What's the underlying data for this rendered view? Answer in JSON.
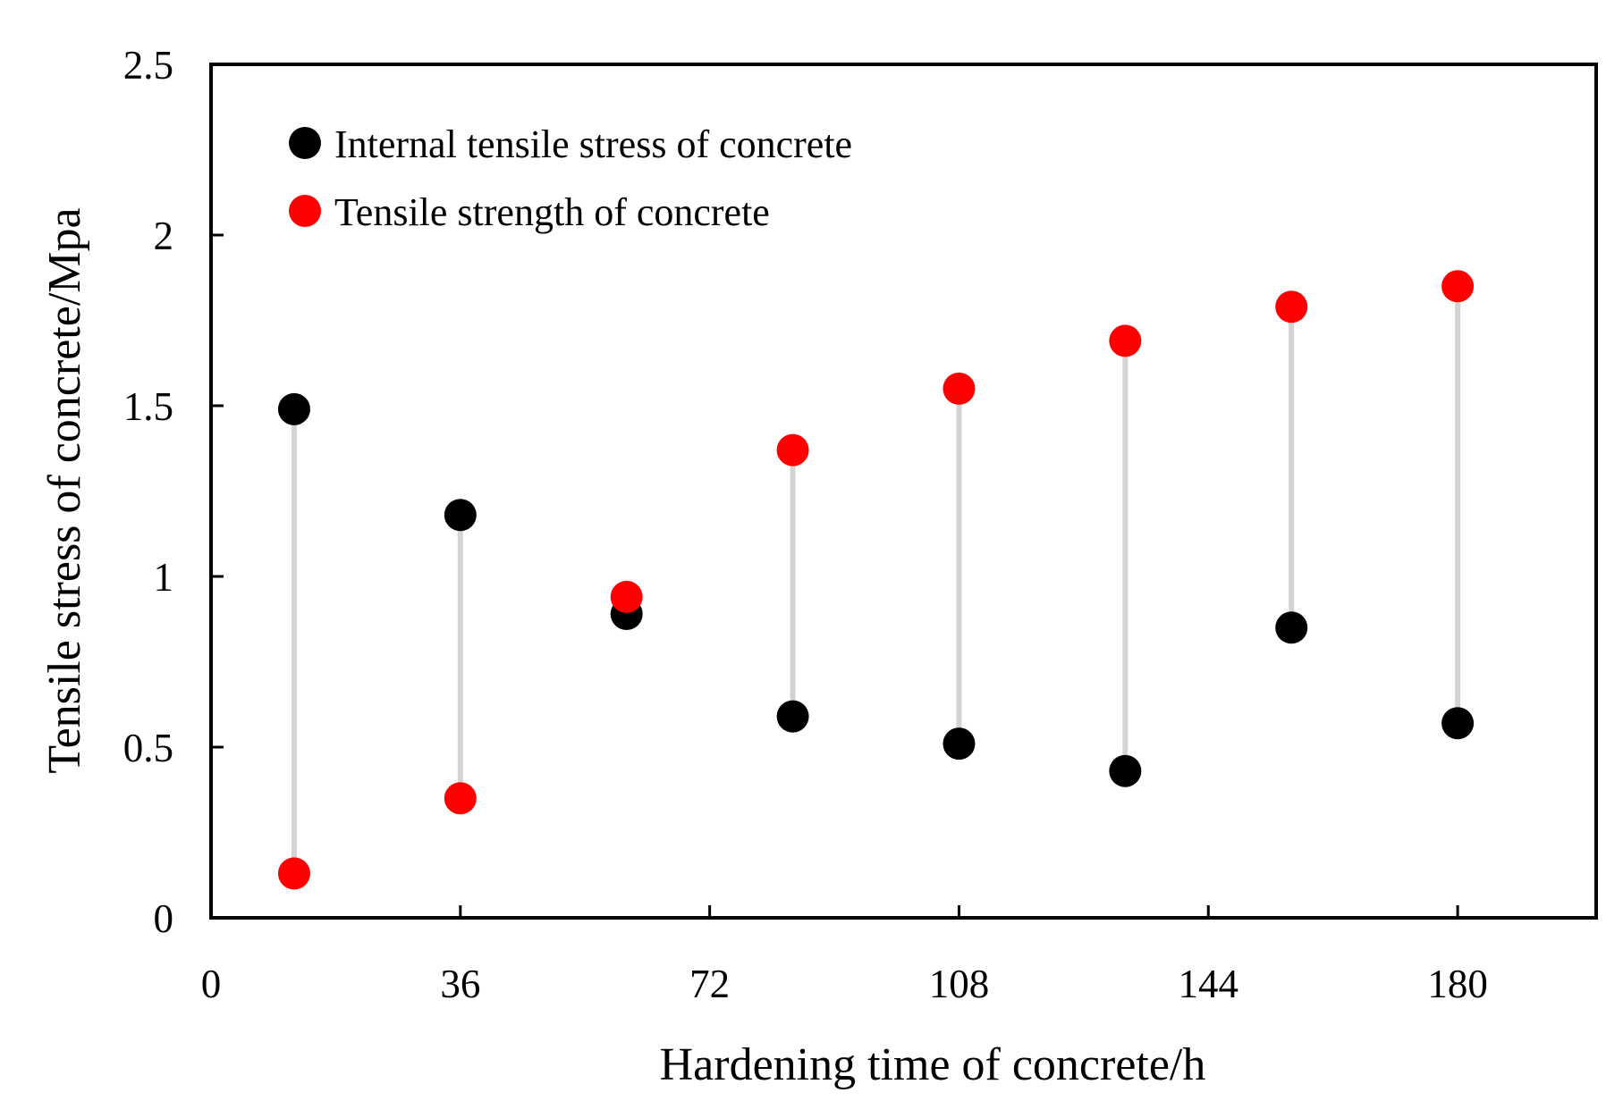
{
  "chart_data": {
    "type": "scatter",
    "title": "",
    "xlabel": "Hardening time of concrete/h",
    "ylabel": "Tensile stress of concrete/Mpa",
    "xlim": [
      0,
      200
    ],
    "ylim": [
      0,
      2.5
    ],
    "xticks": [
      0,
      36,
      72,
      108,
      144,
      180
    ],
    "xtick_labels": [
      "0",
      "36",
      "72",
      "108",
      "144",
      "180"
    ],
    "yticks": [
      0,
      0.5,
      1,
      1.5,
      2,
      2.5
    ],
    "ytick_labels": [
      "0",
      "0.5",
      "1",
      "1.5",
      "2",
      "2.5"
    ],
    "grid": false,
    "legend_position": "top-left",
    "x": [
      12,
      36,
      60,
      84,
      108,
      132,
      156,
      180
    ],
    "series": [
      {
        "name": "Internal tensile stress of concrete",
        "color": "#000000",
        "values": [
          1.49,
          1.18,
          0.89,
          0.59,
          0.51,
          0.43,
          0.85,
          0.57
        ]
      },
      {
        "name": "Tensile strength of concrete",
        "color": "#ff0000",
        "values": [
          0.13,
          0.35,
          0.94,
          1.37,
          1.55,
          1.69,
          1.79,
          1.85
        ]
      }
    ],
    "connector_color": "#d3d3d3"
  }
}
